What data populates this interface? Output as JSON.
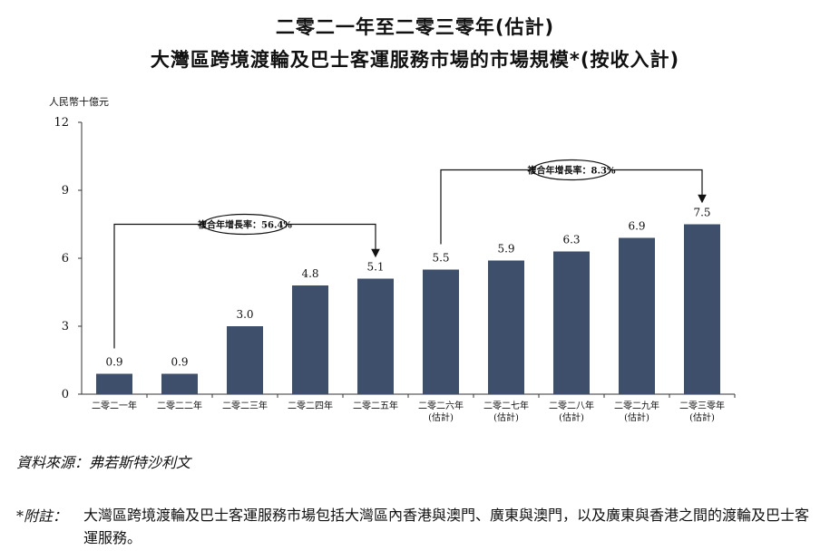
{
  "title_line1": "二零二一年至二零三零年(估計)",
  "title_line2": "大灣區跨境渡輪及巴士客運服務市場的市場規模*(按收入計)",
  "chart_data": {
    "type": "bar",
    "ylabel": "人民幣十億元",
    "ylim": [
      0,
      12
    ],
    "yticks": [
      0,
      3,
      6,
      9,
      12
    ],
    "categories": [
      [
        "二零二一年"
      ],
      [
        "二零二二年"
      ],
      [
        "二零二三年"
      ],
      [
        "二零二四年"
      ],
      [
        "二零二五年"
      ],
      [
        "二零二六年",
        "(估計)"
      ],
      [
        "二零二七年",
        "(估計)"
      ],
      [
        "二零二八年",
        "(估計)"
      ],
      [
        "二零二九年",
        "(估計)"
      ],
      [
        "二零三零年",
        "(估計)"
      ]
    ],
    "values": [
      0.9,
      0.9,
      3.0,
      4.8,
      5.1,
      5.5,
      5.9,
      6.3,
      6.9,
      7.5
    ],
    "value_labels": [
      "0.9",
      "0.9",
      "3.0",
      "4.8",
      "5.1",
      "5.5",
      "5.9",
      "6.3",
      "6.9",
      "7.5"
    ],
    "bar_color": "#3e4f6b",
    "annotations": [
      {
        "label": "複合年增長率：56.4%",
        "from_index": 0,
        "to_index": 4
      },
      {
        "label": "複合年增長率：8.3%",
        "from_index": 5,
        "to_index": 9
      }
    ]
  },
  "source_text": "資料來源：弗若斯特沙利文",
  "note_label": "*附註：",
  "note_text": "大灣區跨境渡輪及巴士客運服務市場包括大灣區內香港與澳門、廣東與澳門，以及廣東與香港之間的渡輪及巴士客運服務。"
}
